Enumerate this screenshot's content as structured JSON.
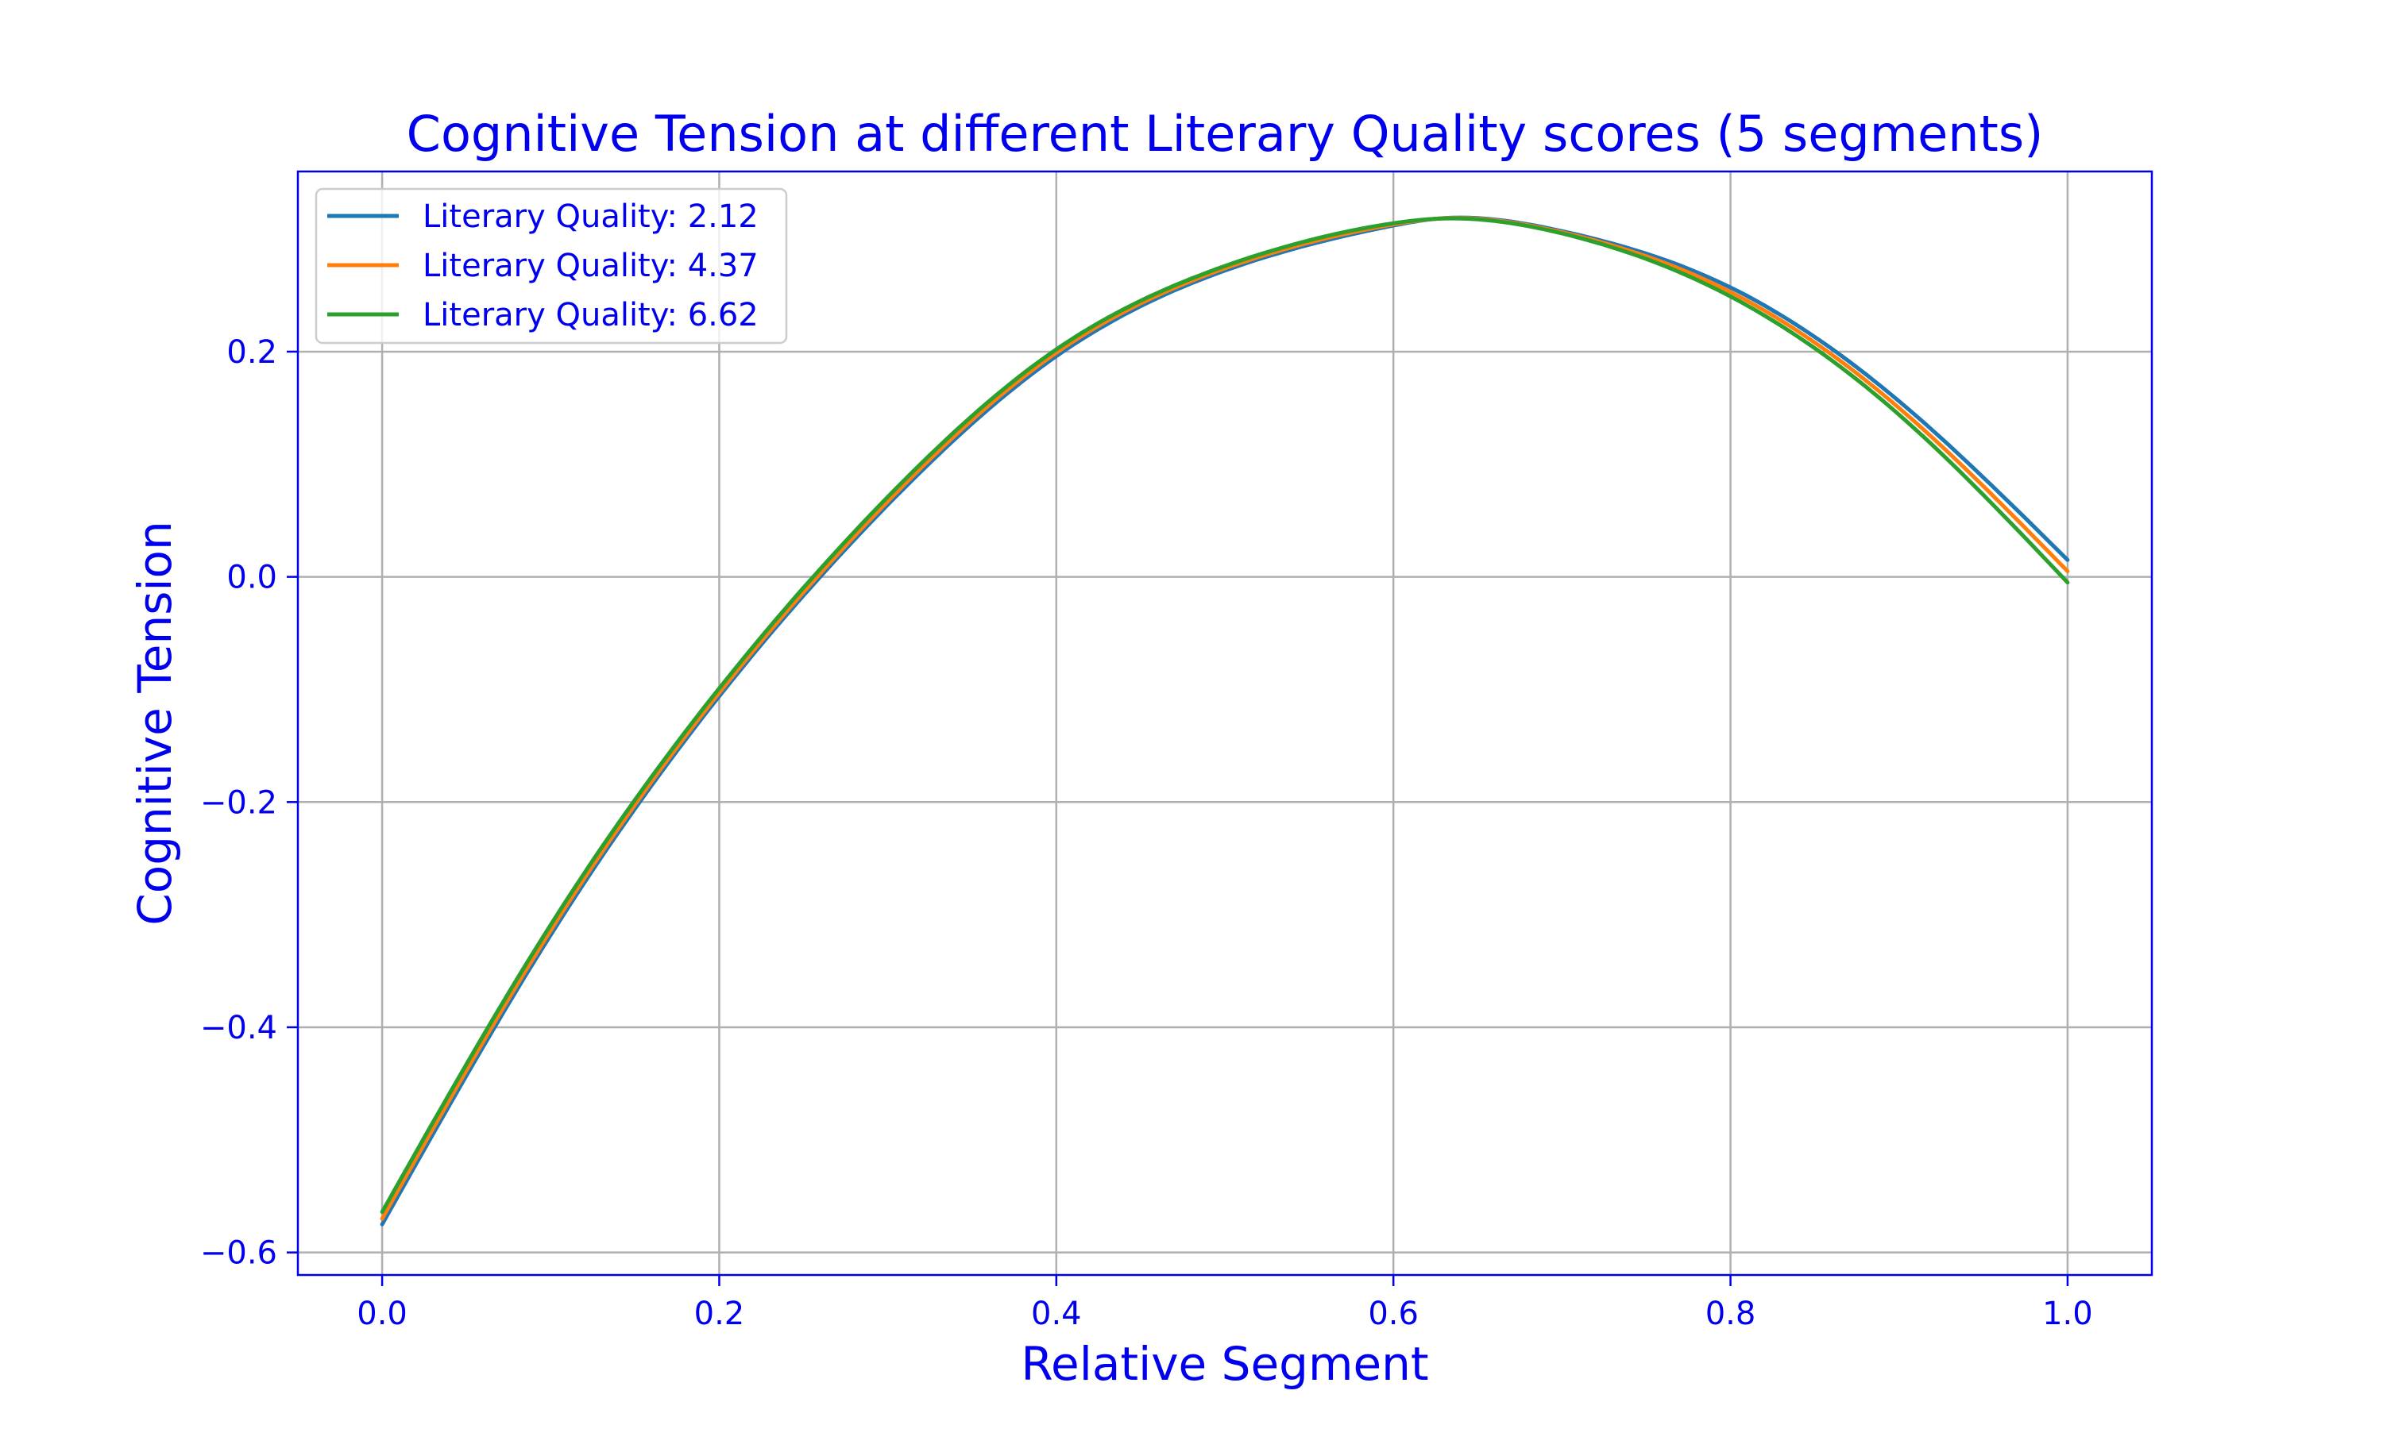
{
  "chart_data": {
    "type": "line",
    "title": "Cognitive Tension at different Literary Quality scores (5 segments)",
    "xlabel": "Relative Segment",
    "ylabel": "Cognitive Tension",
    "xlim": [
      -0.05,
      1.05
    ],
    "ylim": [
      -0.62,
      0.36
    ],
    "xticks": [
      0.0,
      0.2,
      0.4,
      0.6,
      0.8,
      1.0
    ],
    "xtick_labels": [
      "0.0",
      "0.2",
      "0.4",
      "0.6",
      "0.8",
      "1.0"
    ],
    "yticks": [
      -0.6,
      -0.4,
      -0.2,
      0.0,
      0.2
    ],
    "ytick_labels": [
      "−0.6",
      "−0.4",
      "−0.2",
      "0.0",
      "0.2"
    ],
    "grid": true,
    "legend_position": "top-left",
    "x": [
      0.0,
      0.1,
      0.2,
      0.3,
      0.4,
      0.5,
      0.6,
      0.625,
      0.7,
      0.8,
      0.9,
      1.0
    ],
    "series": [
      {
        "name": "Literary Quality: 2.12",
        "color": "#1f77b4",
        "values": [
          -0.575,
          -0.318,
          -0.106,
          0.064,
          0.196,
          0.272,
          0.312,
          0.318,
          0.307,
          0.257,
          0.156,
          0.015
        ]
      },
      {
        "name": "Literary Quality: 4.37",
        "color": "#ff7f0e",
        "values": [
          -0.57,
          -0.314,
          -0.103,
          0.067,
          0.199,
          0.274,
          0.313,
          0.318,
          0.306,
          0.253,
          0.15,
          0.005
        ]
      },
      {
        "name": "Literary Quality: 6.62",
        "color": "#2ca02c",
        "values": [
          -0.564,
          -0.309,
          -0.099,
          0.071,
          0.202,
          0.276,
          0.314,
          0.318,
          0.305,
          0.249,
          0.144,
          -0.005
        ]
      }
    ]
  }
}
